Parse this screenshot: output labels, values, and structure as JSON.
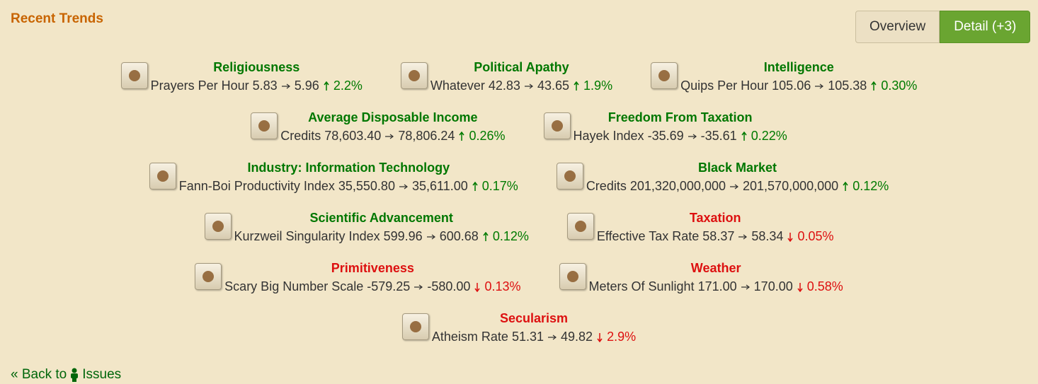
{
  "header": {
    "title": "Recent Trends"
  },
  "tabs": [
    {
      "label": "Overview",
      "active": false
    },
    {
      "label": "Detail (+3)",
      "active": true
    }
  ],
  "rows": [
    [
      {
        "title": "Religiousness",
        "metric": "Prayers Per Hour",
        "from": "5.83",
        "to": "5.96",
        "change": "2.2%",
        "direction": "up"
      },
      {
        "title": "Political Apathy",
        "metric": "Whatever",
        "from": "42.83",
        "to": "43.65",
        "change": "1.9%",
        "direction": "up"
      },
      {
        "title": "Intelligence",
        "metric": "Quips Per Hour",
        "from": "105.06",
        "to": "105.38",
        "change": "0.30%",
        "direction": "up"
      }
    ],
    [
      {
        "title": "Average Disposable Income",
        "metric": "Credits",
        "from": "78,603.40",
        "to": "78,806.24",
        "change": "0.26%",
        "direction": "up"
      },
      {
        "title": "Freedom From Taxation",
        "metric": "Hayek Index",
        "from": "-35.69",
        "to": "-35.61",
        "change": "0.22%",
        "direction": "up"
      }
    ],
    [
      {
        "title": "Industry: Information Technology",
        "metric": "Fann-Boi Productivity Index",
        "from": "35,550.80",
        "to": "35,611.00",
        "change": "0.17%",
        "direction": "up"
      },
      {
        "title": "Black Market",
        "metric": "Credits",
        "from": "201,320,000,000",
        "to": "201,570,000,000",
        "change": "0.12%",
        "direction": "up"
      }
    ],
    [
      {
        "title": "Scientific Advancement",
        "metric": "Kurzweil Singularity Index",
        "from": "599.96",
        "to": "600.68",
        "change": "0.12%",
        "direction": "up"
      },
      {
        "title": "Taxation",
        "metric": "Effective Tax Rate",
        "from": "58.37",
        "to": "58.34",
        "change": "0.05%",
        "direction": "down"
      }
    ],
    [
      {
        "title": "Primitiveness",
        "metric": "Scary Big Number Scale",
        "from": "-579.25",
        "to": "-580.00",
        "change": "0.13%",
        "direction": "down"
      },
      {
        "title": "Weather",
        "metric": "Meters Of Sunlight",
        "from": "171.00",
        "to": "170.00",
        "change": "0.58%",
        "direction": "down"
      }
    ],
    [
      {
        "title": "Secularism",
        "metric": "Atheism Rate",
        "from": "51.31",
        "to": "49.82",
        "change": "2.9%",
        "direction": "down"
      }
    ]
  ],
  "footer": {
    "back": "« Back to",
    "link": "Issues"
  }
}
